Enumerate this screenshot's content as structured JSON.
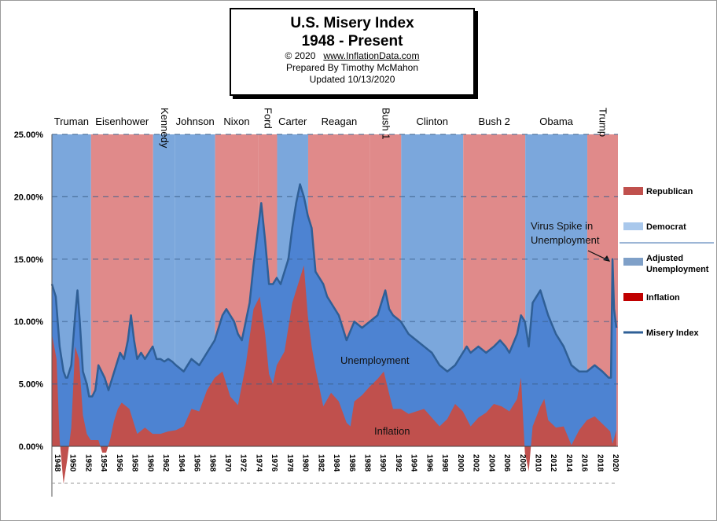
{
  "title_box": {
    "title": "U.S. Misery Index",
    "subtitle": "1948 - Present",
    "copyright": "© 2020",
    "website": "www.InflationData.com",
    "prepared_by": "Prepared  By Timothy McMahon",
    "updated": "Updated  10/13/2020"
  },
  "colors": {
    "republican": "#e08a8a",
    "democrat": "#7ba7dc",
    "unemployment": "#4d83d2",
    "inflation": "#c0504d",
    "misery_line": "#2f5f96"
  },
  "chart_data": {
    "type": "area",
    "title": "U.S. Misery Index",
    "subtitle": "1948 - Present",
    "ylim": [
      0,
      25
    ],
    "y_ticks": [
      "25.00%",
      "20.00%",
      "15.00%",
      "10.00%",
      "5.00%",
      "0.00%"
    ],
    "x_ticks": [
      "1948",
      "1950",
      "1952",
      "1954",
      "1956",
      "1958",
      "1960",
      "1962",
      "1964",
      "1966",
      "1968",
      "1970",
      "1972",
      "1974",
      "1976",
      "1978",
      "1980",
      "1982",
      "1984",
      "1986",
      "1988",
      "1990",
      "1992",
      "1994",
      "1996",
      "1998",
      "2000",
      "2002",
      "2004",
      "2006",
      "2008",
      "2010",
      "2012",
      "2014",
      "2016",
      "2018",
      "2020"
    ],
    "presidents": [
      {
        "name": "Truman",
        "party": "democrat",
        "start": 1948.0,
        "end": 1953.05,
        "vertical": false
      },
      {
        "name": "Eisenhower",
        "party": "republican",
        "start": 1953.05,
        "end": 1961.05,
        "vertical": false
      },
      {
        "name": "Kennedy",
        "party": "democrat",
        "start": 1961.05,
        "end": 1963.9,
        "vertical": true
      },
      {
        "name": "Johnson",
        "party": "democrat",
        "start": 1963.9,
        "end": 1969.05,
        "vertical": false
      },
      {
        "name": "Nixon",
        "party": "republican",
        "start": 1969.05,
        "end": 1974.6,
        "vertical": false
      },
      {
        "name": "Ford",
        "party": "republican",
        "start": 1974.6,
        "end": 1977.05,
        "vertical": true
      },
      {
        "name": "Carter",
        "party": "democrat",
        "start": 1977.05,
        "end": 1981.05,
        "vertical": false
      },
      {
        "name": "Reagan",
        "party": "republican",
        "start": 1981.05,
        "end": 1989.05,
        "vertical": false
      },
      {
        "name": "Bush 1",
        "party": "republican",
        "start": 1989.05,
        "end": 1993.05,
        "vertical": true
      },
      {
        "name": "Clinton",
        "party": "democrat",
        "start": 1993.05,
        "end": 2001.05,
        "vertical": false
      },
      {
        "name": "Bush 2",
        "party": "republican",
        "start": 2001.05,
        "end": 2009.05,
        "vertical": false
      },
      {
        "name": "Obama",
        "party": "democrat",
        "start": 2009.05,
        "end": 2017.05,
        "vertical": false
      },
      {
        "name": "Trump",
        "party": "republican",
        "start": 2017.05,
        "end": 2021.0,
        "vertical": true
      }
    ],
    "legend": {
      "position": "right",
      "items": [
        {
          "label": "Republican",
          "kind": "box",
          "color": "#c0504d"
        },
        {
          "label": "Democrat",
          "kind": "box",
          "color": "#a9c8ec"
        },
        {
          "label": "Adjusted Unemployment",
          "kind": "box",
          "color": "#7fa0c8"
        },
        {
          "label": "Inflation",
          "kind": "box",
          "color": "#c00000"
        },
        {
          "label": "Misery Index",
          "kind": "line",
          "color": "#2f5f96"
        }
      ]
    },
    "annotations": [
      {
        "text": "Virus Spike in Unemployment",
        "x": 2020.3,
        "y": 14.8
      },
      {
        "text": "Unemployment",
        "x": 1992.5,
        "y": 6.5
      },
      {
        "text": "Inflation",
        "x": 1991.5,
        "y": 1.1
      }
    ],
    "series": [
      {
        "name": "Misery Index",
        "x": [
          1948.0,
          1948.5,
          1949.0,
          1949.5,
          1949.8,
          1950.0,
          1950.5,
          1951.0,
          1951.3,
          1951.6,
          1952.0,
          1952.5,
          1952.8,
          1953.2,
          1953.6,
          1954.0,
          1954.4,
          1954.8,
          1955.3,
          1955.8,
          1956.3,
          1956.8,
          1957.3,
          1957.8,
          1958.2,
          1958.6,
          1959.0,
          1959.5,
          1960.0,
          1960.5,
          1961.0,
          1961.5,
          1962.0,
          1962.5,
          1963.0,
          1963.5,
          1964.0,
          1965.0,
          1966.0,
          1967.0,
          1968.0,
          1969.0,
          1970.0,
          1970.5,
          1971.0,
          1971.5,
          1972.0,
          1972.5,
          1973.0,
          1973.5,
          1974.0,
          1974.5,
          1975.0,
          1975.5,
          1976.0,
          1976.5,
          1977.0,
          1977.5,
          1978.0,
          1978.5,
          1979.0,
          1979.5,
          1980.0,
          1980.5,
          1981.0,
          1981.5,
          1982.0,
          1982.5,
          1983.0,
          1983.5,
          1984.0,
          1985.0,
          1986.0,
          1987.0,
          1988.0,
          1989.0,
          1990.0,
          1990.5,
          1991.0,
          1991.5,
          1992.0,
          1993.0,
          1994.0,
          1995.0,
          1996.0,
          1997.0,
          1998.0,
          1999.0,
          2000.0,
          2001.0,
          2001.5,
          2002.0,
          2003.0,
          2004.0,
          2005.0,
          2005.8,
          2006.5,
          2007.0,
          2008.0,
          2008.5,
          2009.0,
          2009.5,
          2010.0,
          2010.5,
          2011.0,
          2011.5,
          2012.0,
          2013.0,
          2014.0,
          2015.0,
          2016.0,
          2017.0,
          2018.0,
          2019.0,
          2019.8,
          2020.1,
          2020.3,
          2020.5,
          2020.8
        ],
        "values": [
          13.0,
          12.0,
          8.0,
          6.0,
          5.5,
          5.5,
          6.5,
          10.5,
          12.5,
          10.0,
          6.0,
          5.0,
          4.0,
          4.0,
          4.5,
          6.5,
          6.0,
          5.5,
          4.5,
          5.5,
          6.5,
          7.5,
          7.0,
          8.5,
          10.5,
          8.5,
          7.0,
          7.5,
          7.0,
          7.5,
          8.0,
          7.0,
          7.0,
          6.8,
          7.0,
          6.8,
          6.5,
          6.0,
          7.0,
          6.5,
          7.5,
          8.5,
          10.5,
          11.0,
          10.5,
          10.0,
          9.0,
          8.5,
          10.0,
          11.5,
          14.5,
          17.0,
          19.5,
          16.5,
          13.0,
          13.0,
          13.5,
          13.0,
          14.0,
          15.0,
          17.5,
          19.5,
          21.0,
          20.0,
          18.5,
          17.5,
          14.0,
          13.5,
          13.0,
          12.0,
          11.5,
          10.5,
          8.5,
          10.0,
          9.5,
          10.0,
          10.5,
          11.5,
          12.5,
          11.0,
          10.5,
          10.0,
          9.0,
          8.5,
          8.0,
          7.5,
          6.5,
          6.0,
          6.5,
          7.5,
          8.0,
          7.5,
          8.0,
          7.5,
          8.0,
          8.5,
          8.0,
          7.5,
          9.0,
          10.5,
          10.0,
          8.0,
          11.5,
          12.0,
          12.5,
          11.5,
          10.5,
          9.0,
          8.0,
          6.5,
          6.0,
          6.0,
          6.5,
          6.0,
          5.5,
          5.5,
          15.0,
          11.0,
          9.5
        ]
      },
      {
        "name": "Inflation",
        "x": [
          1948.0,
          1948.6,
          1949.0,
          1949.5,
          1950.0,
          1950.5,
          1951.0,
          1951.5,
          1952.0,
          1952.5,
          1953.0,
          1953.5,
          1954.0,
          1954.5,
          1955.0,
          1955.5,
          1956.0,
          1956.5,
          1957.0,
          1958.0,
          1959.0,
          1960.0,
          1961.0,
          1962.0,
          1963.0,
          1964.0,
          1965.0,
          1966.0,
          1967.0,
          1968.0,
          1969.0,
          1970.0,
          1971.0,
          1972.0,
          1973.0,
          1974.0,
          1974.8,
          1975.5,
          1976.0,
          1976.5,
          1977.0,
          1978.0,
          1979.0,
          1980.0,
          1980.5,
          1981.0,
          1981.5,
          1982.0,
          1983.0,
          1984.0,
          1985.0,
          1986.0,
          1986.5,
          1987.0,
          1988.0,
          1989.0,
          1990.0,
          1990.8,
          1991.5,
          1992.0,
          1993.0,
          1994.0,
          1995.0,
          1996.0,
          1997.0,
          1998.0,
          1999.0,
          2000.0,
          2001.0,
          2002.0,
          2003.0,
          2004.0,
          2005.0,
          2006.0,
          2007.0,
          2008.0,
          2008.5,
          2009.0,
          2009.5,
          2010.0,
          2011.0,
          2011.5,
          2012.0,
          2013.0,
          2014.0,
          2015.0,
          2016.0,
          2017.0,
          2018.0,
          2019.0,
          2020.0,
          2020.3,
          2020.8
        ],
        "values": [
          9.0,
          7.0,
          0.5,
          -3.0,
          -1.0,
          1.5,
          8.0,
          7.0,
          2.5,
          1.0,
          0.5,
          0.5,
          0.5,
          -0.5,
          -0.5,
          0.5,
          2.0,
          3.0,
          3.5,
          3.0,
          1.0,
          1.5,
          1.0,
          1.0,
          1.2,
          1.3,
          1.6,
          3.0,
          2.8,
          4.5,
          5.5,
          6.0,
          4.0,
          3.3,
          6.5,
          11.0,
          12.0,
          9.0,
          5.8,
          5.0,
          6.5,
          7.6,
          11.5,
          13.5,
          14.5,
          10.5,
          8.0,
          6.2,
          3.2,
          4.3,
          3.6,
          1.9,
          1.6,
          3.6,
          4.1,
          4.8,
          5.4,
          6.0,
          4.2,
          3.0,
          3.0,
          2.6,
          2.8,
          3.0,
          2.3,
          1.6,
          2.2,
          3.4,
          2.8,
          1.6,
          2.3,
          2.7,
          3.4,
          3.2,
          2.8,
          3.8,
          5.5,
          -0.5,
          -2.0,
          1.6,
          3.2,
          3.8,
          2.1,
          1.5,
          1.6,
          0.1,
          1.3,
          2.1,
          2.4,
          1.8,
          1.2,
          0.2,
          1.3
        ]
      }
    ]
  }
}
